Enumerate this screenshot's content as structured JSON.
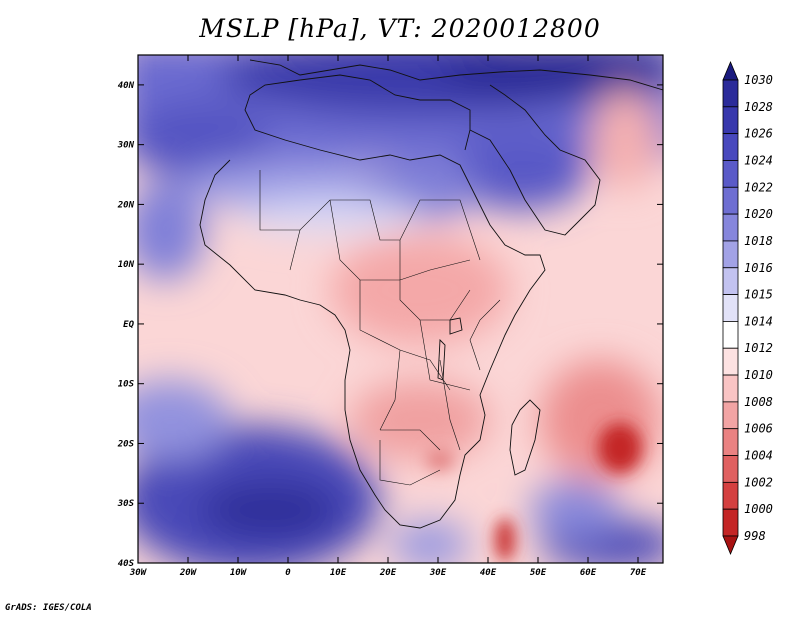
{
  "title": "MSLP [hPa], VT: 2020012800",
  "credit": "GrADS: IGES/COLA",
  "map": {
    "variable": "Mean sea level pressure",
    "units": "hPa",
    "region": "Africa",
    "lon_range": [
      -30,
      75
    ],
    "lat_range": [
      -40,
      45
    ],
    "lon_ticks": [
      "30W",
      "20W",
      "10W",
      "0",
      "10E",
      "20E",
      "30E",
      "40E",
      "50E",
      "60E",
      "70E"
    ],
    "lat_ticks": [
      "40N",
      "30N",
      "20N",
      "10N",
      "EQ",
      "10S",
      "20S",
      "30S",
      "40S"
    ]
  },
  "colorbar": {
    "labels": [
      "1030",
      "1028",
      "1026",
      "1024",
      "1022",
      "1020",
      "1018",
      "1016",
      "1015",
      "1014",
      "1012",
      "1010",
      "1008",
      "1006",
      "1004",
      "1002",
      "1000",
      "998"
    ],
    "colors": [
      "#1a1a7e",
      "#2b2b9a",
      "#3838ad",
      "#4848bd",
      "#5a5ac8",
      "#6e6ed2",
      "#8686dc",
      "#a2a2e6",
      "#c2c2f0",
      "#e2e2f8",
      "#ffffff",
      "#fde2e2",
      "#f9c4c4",
      "#f2a4a4",
      "#ea8282",
      "#e06060",
      "#d44040",
      "#c42525",
      "#a81212"
    ]
  }
}
